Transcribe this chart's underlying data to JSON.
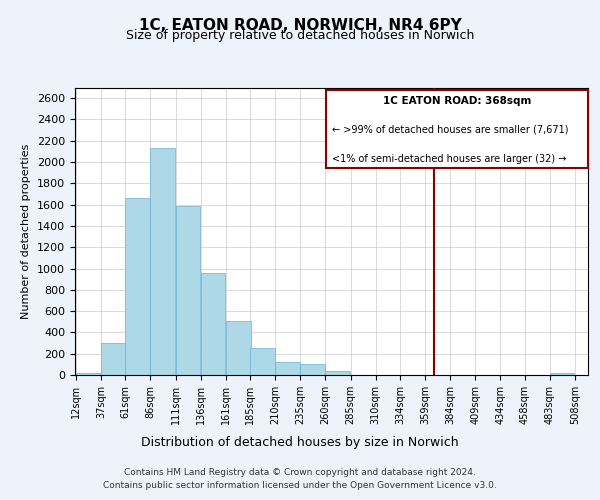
{
  "title": "1C, EATON ROAD, NORWICH, NR4 6PY",
  "subtitle": "Size of property relative to detached houses in Norwich",
  "xlabel": "Distribution of detached houses by size in Norwich",
  "ylabel": "Number of detached properties",
  "bin_labels": [
    "12sqm",
    "37sqm",
    "61sqm",
    "86sqm",
    "111sqm",
    "136sqm",
    "161sqm",
    "185sqm",
    "210sqm",
    "235sqm",
    "260sqm",
    "285sqm",
    "310sqm",
    "334sqm",
    "359sqm",
    "384sqm",
    "409sqm",
    "434sqm",
    "458sqm",
    "483sqm",
    "508sqm"
  ],
  "bar_heights": [
    20,
    300,
    1660,
    2130,
    1590,
    960,
    510,
    255,
    125,
    100,
    35,
    0,
    0,
    0,
    0,
    0,
    0,
    0,
    0,
    20,
    0
  ],
  "bar_color": "#add8e6",
  "bar_edge_color": "#6baed6",
  "vline_x": 368,
  "vline_color": "#8b0000",
  "property_line_label": "1C EATON ROAD: 368sqm",
  "annotation_smaller": ">99% of detached houses are smaller (7,671)",
  "annotation_larger": "<1% of semi-detached houses are larger (32)",
  "xmin": 12,
  "xmax": 508,
  "bin_width": 25,
  "ylim": [
    0,
    2700
  ],
  "yticks": [
    0,
    200,
    400,
    600,
    800,
    1000,
    1200,
    1400,
    1600,
    1800,
    2000,
    2200,
    2400,
    2600
  ],
  "footer_line1": "Contains HM Land Registry data © Crown copyright and database right 2024.",
  "footer_line2": "Contains public sector information licensed under the Open Government Licence v3.0.",
  "background_color": "#eef2fa",
  "plot_bg_color": "#ffffff",
  "grid_color": "#cccccc"
}
